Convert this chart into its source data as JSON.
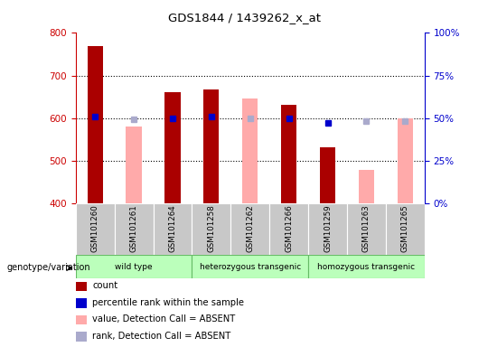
{
  "title": "GDS1844 / 1439262_x_at",
  "samples": [
    "GSM101260",
    "GSM101261",
    "GSM101264",
    "GSM101258",
    "GSM101262",
    "GSM101266",
    "GSM101259",
    "GSM101263",
    "GSM101265"
  ],
  "count_values": [
    770,
    null,
    660,
    668,
    null,
    632,
    530,
    null,
    null
  ],
  "count_absent_values": [
    null,
    580,
    null,
    null,
    645,
    null,
    null,
    477,
    600
  ],
  "rank_values": [
    51,
    null,
    50,
    51,
    null,
    50,
    47,
    null,
    null
  ],
  "rank_absent_marker": [
    null,
    49,
    null,
    null,
    50,
    null,
    null,
    48,
    48
  ],
  "ylim": [
    400,
    800
  ],
  "yticks": [
    400,
    500,
    600,
    700,
    800
  ],
  "y2lim": [
    0,
    100
  ],
  "y2ticks": [
    0,
    25,
    50,
    75,
    100
  ],
  "y2labels": [
    "0%",
    "25%",
    "50%",
    "75%",
    "100%"
  ],
  "genotype_groups": [
    {
      "label": "wild type",
      "start": 0,
      "end": 3
    },
    {
      "label": "heterozygous transgenic",
      "start": 3,
      "end": 6
    },
    {
      "label": "homozygous transgenic",
      "start": 6,
      "end": 9
    }
  ],
  "bar_width": 0.4,
  "count_color": "#aa0000",
  "count_absent_color": "#ffaaaa",
  "rank_color": "#0000cc",
  "rank_absent_color": "#aaaacc",
  "tick_color_left": "#cc0000",
  "tick_color_right": "#0000cc",
  "grid_yticks": [
    500,
    600,
    700
  ],
  "group_facecolor": "#bbffbb",
  "group_edgecolor": "#66bb66",
  "sample_bg": "#c8c8c8",
  "legend_items": [
    {
      "label": "count",
      "color": "#aa0000"
    },
    {
      "label": "percentile rank within the sample",
      "color": "#0000cc"
    },
    {
      "label": "value, Detection Call = ABSENT",
      "color": "#ffaaaa"
    },
    {
      "label": "rank, Detection Call = ABSENT",
      "color": "#aaaacc"
    }
  ]
}
